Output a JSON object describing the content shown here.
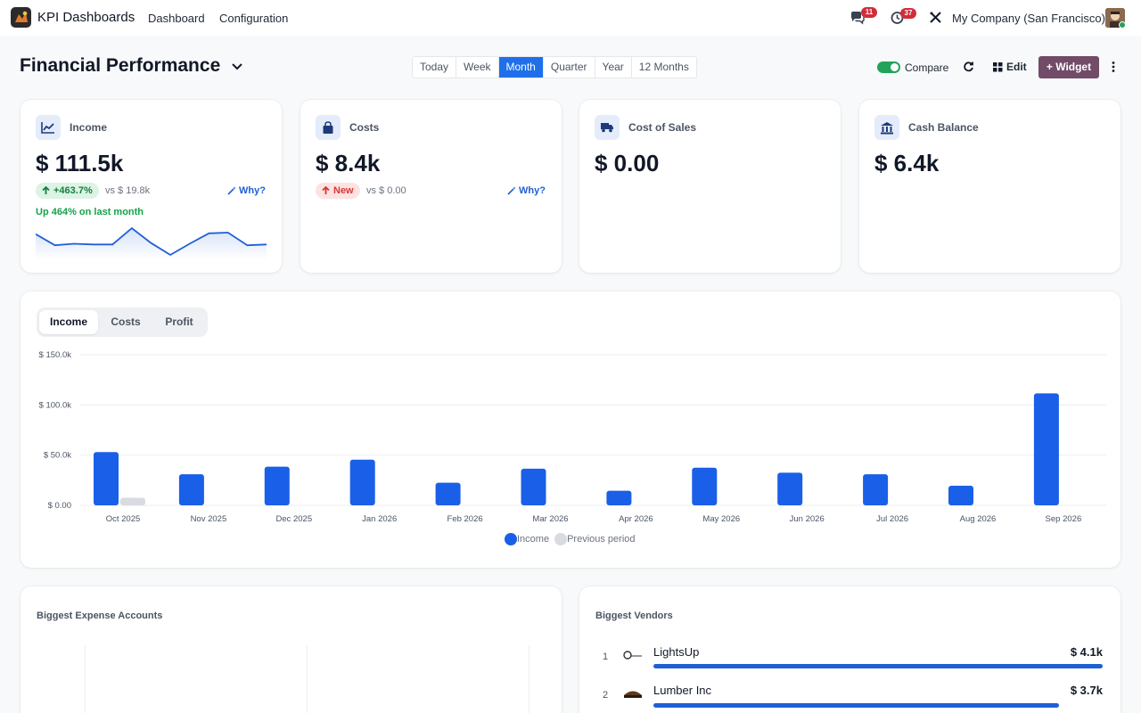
{
  "topbar": {
    "app_name": "KPI Dashboards",
    "menu": [
      "Dashboard",
      "Configuration"
    ],
    "messages_count": "11",
    "activities_count": "37",
    "company": "My Company (San Francisco)"
  },
  "header": {
    "title": "Financial Performance",
    "periods": [
      "Today",
      "Week",
      "Month",
      "Quarter",
      "Year",
      "12 Months"
    ],
    "active_period": "Month",
    "compare_label": "Compare",
    "compare_enabled": true,
    "edit_label": "Edit",
    "widget_label": "+ Widget"
  },
  "kpis": [
    {
      "label": "Income",
      "value": "$ 111.5k",
      "change": "+463.7%",
      "vs": "vs $ 19.8k",
      "why": "Why?",
      "trend": "Up 464% on last month",
      "icon": "line-chart-icon"
    },
    {
      "label": "Costs",
      "value": "$ 8.4k",
      "change": "New",
      "vs": "vs $ 0.00",
      "why": "Why?",
      "icon": "shopping-bag-icon"
    },
    {
      "label": "Cost of Sales",
      "value": "$ 0.00",
      "icon": "truck-icon"
    },
    {
      "label": "Cash Balance",
      "value": "$ 6.4k",
      "icon": "bank-icon"
    }
  ],
  "sparkline": [
    38,
    23,
    25,
    24,
    24,
    46,
    26,
    10,
    25,
    39,
    40,
    23,
    24
  ],
  "chart": {
    "tabs": [
      "Income",
      "Costs",
      "Profit"
    ],
    "active_tab": "Income",
    "legend_income": "Income",
    "legend_previous": "Previous period"
  },
  "chart_data": {
    "type": "bar",
    "categories": [
      "Oct 2025",
      "Nov 2025",
      "Dec 2025",
      "Jan 2026",
      "Feb 2026",
      "Mar 2026",
      "Apr 2026",
      "May 2026",
      "Jun 2026",
      "Jul 2026",
      "Aug 2026",
      "Sep 2026"
    ],
    "series": [
      {
        "name": "Income",
        "color": "#1a5fe8",
        "values": [
          53,
          31,
          38.5,
          45.5,
          22.5,
          36.5,
          14.5,
          37.5,
          32.5,
          31,
          19.5,
          111.5
        ]
      },
      {
        "name": "Previous period",
        "color": "#d9dbe0",
        "values": [
          7.5,
          0,
          0,
          0,
          0,
          0,
          0,
          0,
          0,
          0,
          0,
          0
        ]
      }
    ],
    "ylim": [
      0,
      150
    ],
    "yticks": [
      "$ 0.00",
      "$ 50.0k",
      "$ 100.0k",
      "$ 150.0k"
    ],
    "ytick_values": [
      0,
      50,
      100,
      150
    ],
    "grid": true,
    "legend": "bottom"
  },
  "expenses": {
    "title": "Biggest Expense Accounts"
  },
  "vendors": {
    "title": "Biggest Vendors",
    "items": [
      {
        "rank": "1",
        "name": "LightsUp",
        "value": "$ 4.1k",
        "amount": 4.1
      },
      {
        "rank": "2",
        "name": "Lumber Inc",
        "value": "$ 3.7k",
        "amount": 3.7
      }
    ],
    "max": 4.1
  }
}
